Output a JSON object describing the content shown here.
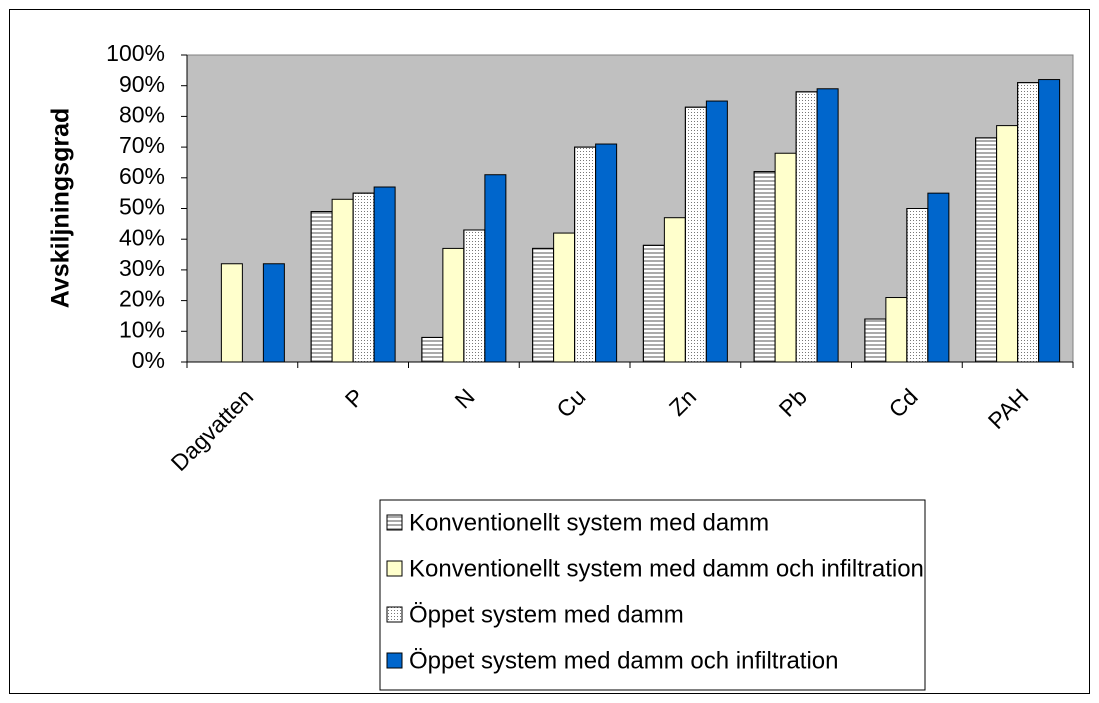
{
  "chart_data": {
    "type": "bar",
    "y_label": "Avskiljningsgrad",
    "categories": [
      "Dagvatten",
      "P",
      "N",
      "Cu",
      "Zn",
      "Pb",
      "Cd",
      "PAH"
    ],
    "series": [
      {
        "name": "Konventionellt system med damm",
        "color": "#ffffff",
        "pattern": "horizontal",
        "values": [
          null,
          49,
          8,
          37,
          38,
          62,
          14,
          73
        ]
      },
      {
        "name": "Konventionellt system med damm och infiltration",
        "color": "#ffffcc",
        "values": [
          32,
          53,
          37,
          42,
          47,
          68,
          21,
          77
        ]
      },
      {
        "name": "Öppet system med damm",
        "color": "#ffffff",
        "pattern": "dots",
        "values": [
          null,
          55,
          43,
          70,
          83,
          88,
          50,
          91
        ]
      },
      {
        "name": "Öppet system med damm och infiltration",
        "color": "#0066cc",
        "values": [
          32,
          57,
          61,
          71,
          85,
          89,
          55,
          92
        ]
      }
    ],
    "ylim": [
      0,
      100
    ],
    "yticks": [
      {
        "value": 0,
        "label": "0%"
      },
      {
        "value": 10,
        "label": "10%"
      },
      {
        "value": 20,
        "label": "20%"
      },
      {
        "value": 30,
        "label": "30%"
      },
      {
        "value": 40,
        "label": "40%"
      },
      {
        "value": 50,
        "label": "50%"
      },
      {
        "value": 60,
        "label": "60%"
      },
      {
        "value": 70,
        "label": "70%"
      },
      {
        "value": 80,
        "label": "80%"
      },
      {
        "value": 90,
        "label": "90%"
      },
      {
        "value": 100,
        "label": "100%"
      }
    ],
    "plot_background": "#c0c0c0",
    "legend": "bottom"
  }
}
